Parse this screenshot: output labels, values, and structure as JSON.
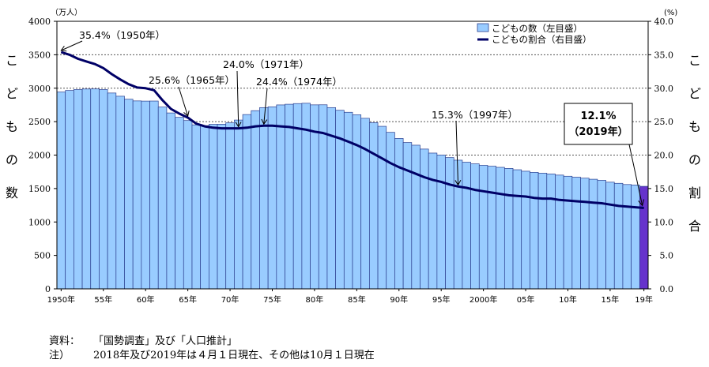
{
  "chart_data": {
    "type": "bar",
    "unit_left": "（万人）",
    "unit_right": "(%)",
    "ylabel": "こどもの数",
    "ylabel_right": "こどもの割合",
    "ylim": [
      0,
      4000
    ],
    "ylim_right": [
      0,
      40
    ],
    "yticks": [
      "0",
      "500",
      "1000",
      "1500",
      "2000",
      "2500",
      "3000",
      "3500",
      "4000"
    ],
    "yticks_right": [
      "0.0",
      "5.0",
      "10.0",
      "15.0",
      "20.0",
      "25.0",
      "30.0",
      "35.0",
      "40.0"
    ],
    "xtick_labels": [
      {
        "year": 1950,
        "label": "1950年"
      },
      {
        "year": 1955,
        "label": "55年"
      },
      {
        "year": 1960,
        "label": "60年"
      },
      {
        "year": 1965,
        "label": "65年"
      },
      {
        "year": 1970,
        "label": "70年"
      },
      {
        "year": 1975,
        "label": "75年"
      },
      {
        "year": 1980,
        "label": "80年"
      },
      {
        "year": 1985,
        "label": "85年"
      },
      {
        "year": 1990,
        "label": "90年"
      },
      {
        "year": 1995,
        "label": "95年"
      },
      {
        "year": 2000,
        "label": "2000年"
      },
      {
        "year": 2005,
        "label": "05年"
      },
      {
        "year": 2010,
        "label": "10年"
      },
      {
        "year": 2015,
        "label": "15年"
      },
      {
        "year": 2019,
        "label": "19年"
      }
    ],
    "grid": true,
    "legend_position": "top-right",
    "series": [
      {
        "name": "こどもの数（左目盛）",
        "type": "bar",
        "axis": "left",
        "color": "#99ccff",
        "highlight_color": "#6633cc",
        "highlight_year": 2019,
        "x": [
          1950,
          1951,
          1952,
          1953,
          1954,
          1955,
          1956,
          1957,
          1958,
          1959,
          1960,
          1961,
          1962,
          1963,
          1964,
          1965,
          1966,
          1967,
          1968,
          1969,
          1970,
          1971,
          1972,
          1973,
          1974,
          1975,
          1976,
          1977,
          1978,
          1979,
          1980,
          1981,
          1982,
          1983,
          1984,
          1985,
          1986,
          1987,
          1988,
          1989,
          1990,
          1991,
          1992,
          1993,
          1994,
          1995,
          1996,
          1997,
          1998,
          1999,
          2000,
          2001,
          2002,
          2003,
          2004,
          2005,
          2006,
          2007,
          2008,
          2009,
          2010,
          2011,
          2012,
          2013,
          2014,
          2015,
          2016,
          2017,
          2018,
          2019
        ],
        "values": [
          2943,
          2966,
          2980,
          2988,
          2989,
          2980,
          2928,
          2880,
          2835,
          2810,
          2807,
          2808,
          2718,
          2630,
          2565,
          2517,
          2452,
          2440,
          2460,
          2462,
          2482,
          2524,
          2606,
          2664,
          2710,
          2722,
          2750,
          2760,
          2770,
          2775,
          2751,
          2752,
          2710,
          2670,
          2640,
          2603,
          2550,
          2485,
          2430,
          2340,
          2249,
          2188,
          2148,
          2090,
          2030,
          2001,
          1963,
          1924,
          1894,
          1869,
          1847,
          1834,
          1817,
          1801,
          1781,
          1759,
          1742,
          1730,
          1718,
          1701,
          1684,
          1670,
          1655,
          1639,
          1623,
          1595,
          1578,
          1560,
          1553,
          1533
        ]
      },
      {
        "name": "こどもの割合（右目盛）",
        "type": "line",
        "axis": "right",
        "color": "#000066",
        "x": [
          1950,
          1951,
          1952,
          1953,
          1954,
          1955,
          1956,
          1957,
          1958,
          1959,
          1960,
          1961,
          1962,
          1963,
          1964,
          1965,
          1966,
          1967,
          1968,
          1969,
          1970,
          1971,
          1972,
          1973,
          1974,
          1975,
          1976,
          1977,
          1978,
          1979,
          1980,
          1981,
          1982,
          1983,
          1984,
          1985,
          1986,
          1987,
          1988,
          1989,
          1990,
          1991,
          1992,
          1993,
          1994,
          1995,
          1996,
          1997,
          1998,
          1999,
          2000,
          2001,
          2002,
          2003,
          2004,
          2005,
          2006,
          2007,
          2008,
          2009,
          2010,
          2011,
          2012,
          2013,
          2014,
          2015,
          2016,
          2017,
          2018,
          2019
        ],
        "values": [
          35.4,
          35.0,
          34.4,
          34.0,
          33.6,
          33.0,
          32.1,
          31.3,
          30.6,
          30.1,
          30.0,
          29.7,
          28.2,
          26.9,
          26.2,
          25.6,
          24.7,
          24.3,
          24.1,
          24.0,
          24.0,
          24.0,
          24.1,
          24.3,
          24.4,
          24.4,
          24.3,
          24.2,
          24.0,
          23.8,
          23.5,
          23.3,
          22.9,
          22.5,
          22.0,
          21.5,
          20.9,
          20.2,
          19.5,
          18.8,
          18.2,
          17.7,
          17.2,
          16.7,
          16.3,
          16.0,
          15.6,
          15.3,
          15.1,
          14.8,
          14.6,
          14.4,
          14.2,
          14.0,
          13.9,
          13.8,
          13.6,
          13.5,
          13.5,
          13.3,
          13.2,
          13.1,
          13.0,
          12.9,
          12.8,
          12.6,
          12.4,
          12.3,
          12.2,
          12.1
        ]
      }
    ],
    "annotations": [
      {
        "text": "35.4%（1950年）",
        "year": 1950,
        "value": 35.4,
        "boxed": false
      },
      {
        "text": "25.6%（1965年）",
        "year": 1965,
        "value": 25.6,
        "boxed": false
      },
      {
        "text": "24.0%（1971年）",
        "year": 1971,
        "value": 24.0,
        "boxed": false
      },
      {
        "text": "24.4%（1974年）",
        "year": 1974,
        "value": 24.4,
        "boxed": false
      },
      {
        "text": "15.3%（1997年）",
        "year": 1997,
        "value": 15.3,
        "boxed": false
      },
      {
        "text": "12.1%",
        "text2": "（2019年）",
        "year": 2019,
        "value": 12.1,
        "boxed": true
      }
    ]
  },
  "notes": [
    {
      "key": "資料：",
      "text": "「国勢調査」及び「人口推計」"
    },
    {
      "key": "注）",
      "text": "2018年及び2019年は４月１日現在、その他は10月１日現在"
    }
  ]
}
